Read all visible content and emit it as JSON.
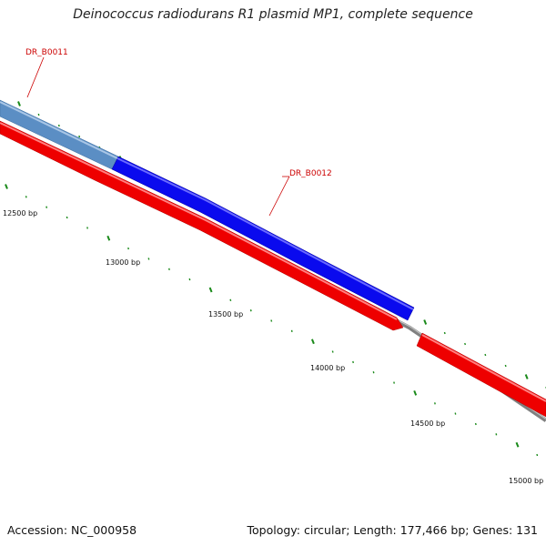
{
  "header": {
    "title": "Deinococcus radiodurans R1 plasmid MP1, complete sequence"
  },
  "footer": {
    "accession": "Accession: NC_000958",
    "summary": "Topology: circular; Length: 177,466 bp; Genes: 131"
  },
  "scale_labels": [
    {
      "bp": 12500,
      "text": "12500 bp"
    },
    {
      "bp": 13000,
      "text": "13000 bp"
    },
    {
      "bp": 13500,
      "text": "13500 bp"
    },
    {
      "bp": 14000,
      "text": "14000 bp"
    },
    {
      "bp": 14500,
      "text": "14500 bp"
    },
    {
      "bp": 15000,
      "text": "15000 bp"
    }
  ],
  "genes": [
    {
      "id": "DR_B0011",
      "label": "DR_B0011",
      "strand": "forward",
      "color": "#5b8ec4"
    },
    {
      "id": "DR_B0012",
      "label": "DR_B0012",
      "strand": "forward",
      "color": "#0a0aee"
    }
  ],
  "colors": {
    "reverse_feature": "#ee0000",
    "backbone": "#808080",
    "ticks": "#1a8a1a",
    "gene_label": "#cc0000"
  }
}
